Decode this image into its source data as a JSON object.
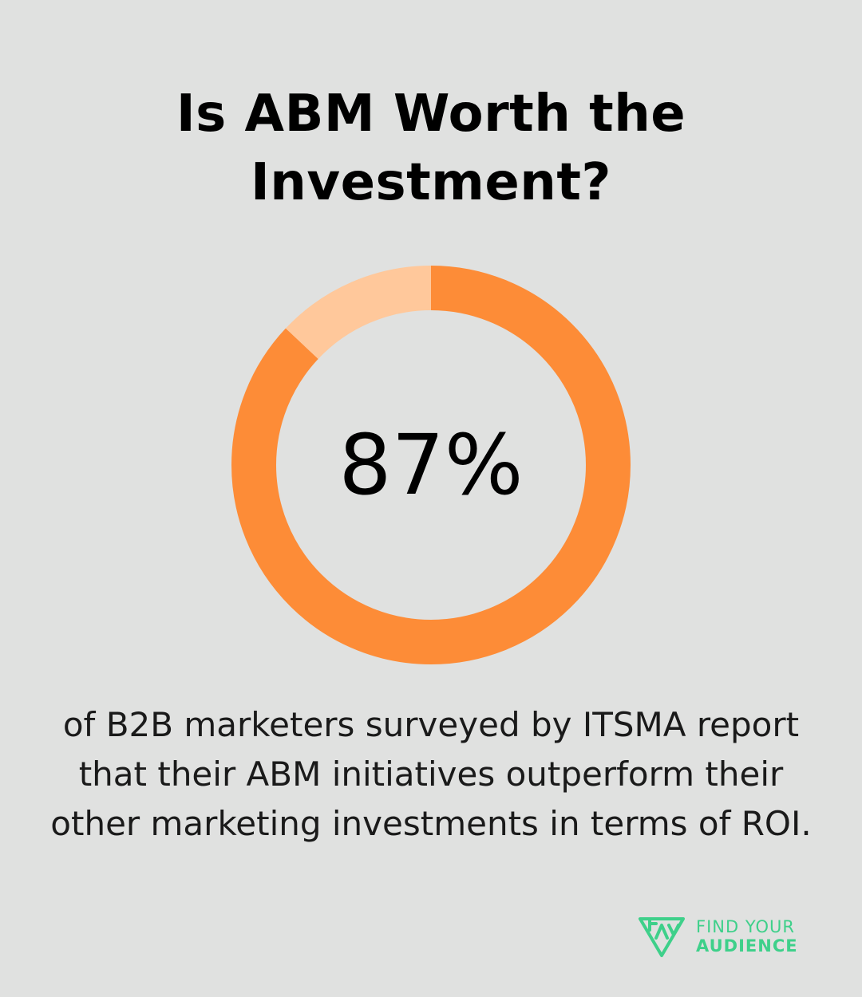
{
  "title": {
    "line1": "Is ABM Worth the",
    "line2": "Investment?"
  },
  "chart_data": {
    "type": "pie",
    "style": "donut",
    "values": [
      87,
      13
    ],
    "center_label": "87%",
    "colors": {
      "primary": "#fd8c37",
      "secondary": "#ffc89b"
    }
  },
  "caption": {
    "line1": "of B2B marketers surveyed by ITSMA report",
    "line2": "that their ABM initiatives outperform their",
    "line3": "other marketing investments in terms of ROI."
  },
  "brand": {
    "line1": "FIND YOUR",
    "line2": "AUDIENCE",
    "color": "#3ed08a",
    "icon": "find-your-audience-logo-icon"
  }
}
